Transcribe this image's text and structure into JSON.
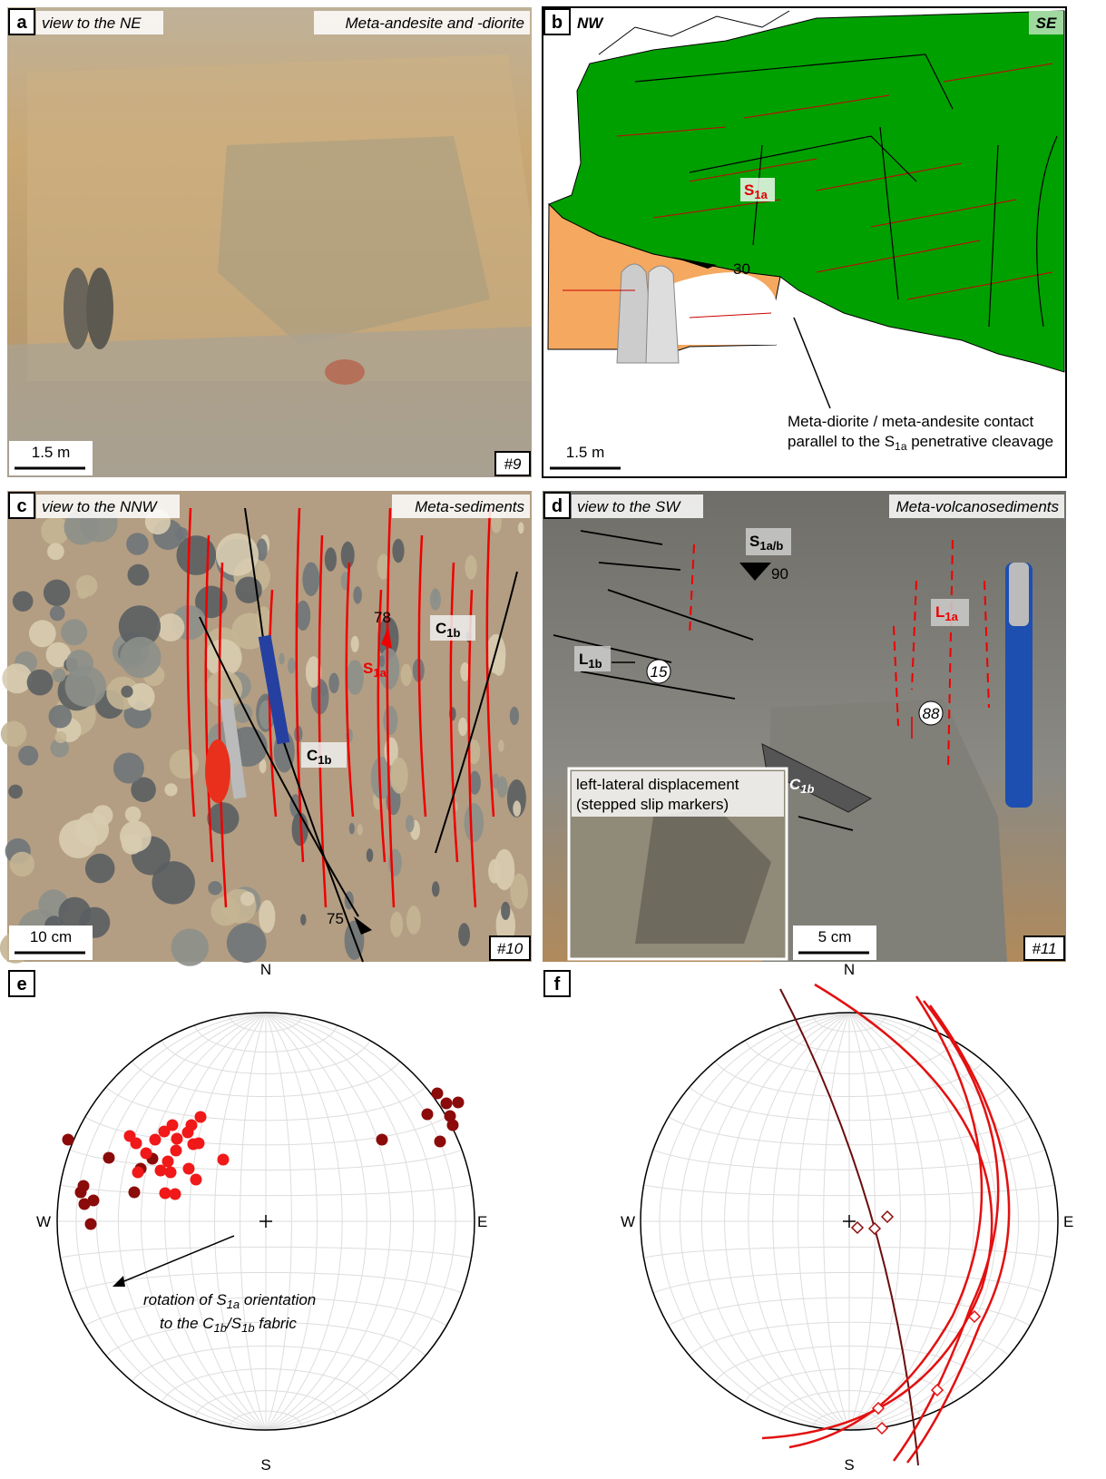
{
  "panels": {
    "a": {
      "label": "a",
      "view": "view to the NE",
      "unit": "Meta-andesite and -diorite",
      "scale": "1.5 m",
      "site": "#9"
    },
    "b": {
      "label": "b",
      "nw": "NW",
      "se": "SE",
      "cleavage": {
        "main": "S",
        "sub": "1a"
      },
      "dip": 30,
      "note_line1": "Meta-diorite / meta-andesite contact",
      "note_line2": {
        "before": "parallel to the S",
        "sub": "1a",
        "after": " penetrative cleavage"
      },
      "scale": "1.5 m"
    },
    "c": {
      "label": "c",
      "view": "view to the NNW",
      "unit": "Meta-sediments",
      "dip_s1a": 78,
      "s1a": {
        "main": "S",
        "sub": "1a"
      },
      "c1b": [
        {
          "main": "C",
          "sub": "1b"
        },
        {
          "main": "C",
          "sub": "1b"
        }
      ],
      "dip_c1b": 75,
      "scale": "10 cm",
      "site": "#10"
    },
    "d": {
      "label": "d",
      "view": "view to the SW",
      "unit": "Meta-volcanosediments",
      "s1ab": {
        "main": "S",
        "sub": "1a/b"
      },
      "dip": 90,
      "l1a": {
        "main": "L",
        "sub": "1a"
      },
      "l1b": {
        "main": "L",
        "sub": "1b"
      },
      "plunge_l1b": 15,
      "plunge_l1a": 88,
      "c1b": {
        "main": "C",
        "sub": "1b"
      },
      "inset_line1": "left-lateral displacement",
      "inset_line2": "(stepped slip markers)",
      "scale": "5 cm",
      "site": "#11"
    },
    "e": {
      "label": "e",
      "north": "N",
      "south": "S",
      "west": "W",
      "east": "E",
      "note_line1": {
        "before": "rotation of ",
        "main": "S",
        "sub": "1a",
        "after": " orientation"
      },
      "note_line2": {
        "before": "to the ",
        "c": "C",
        "csub": "1b",
        "slash": "/",
        "s": "S",
        "ssub": "1b",
        "after": " fabric"
      }
    },
    "f": {
      "label": "f",
      "north": "N",
      "south": "S",
      "west": "W",
      "east": "E"
    }
  }
}
